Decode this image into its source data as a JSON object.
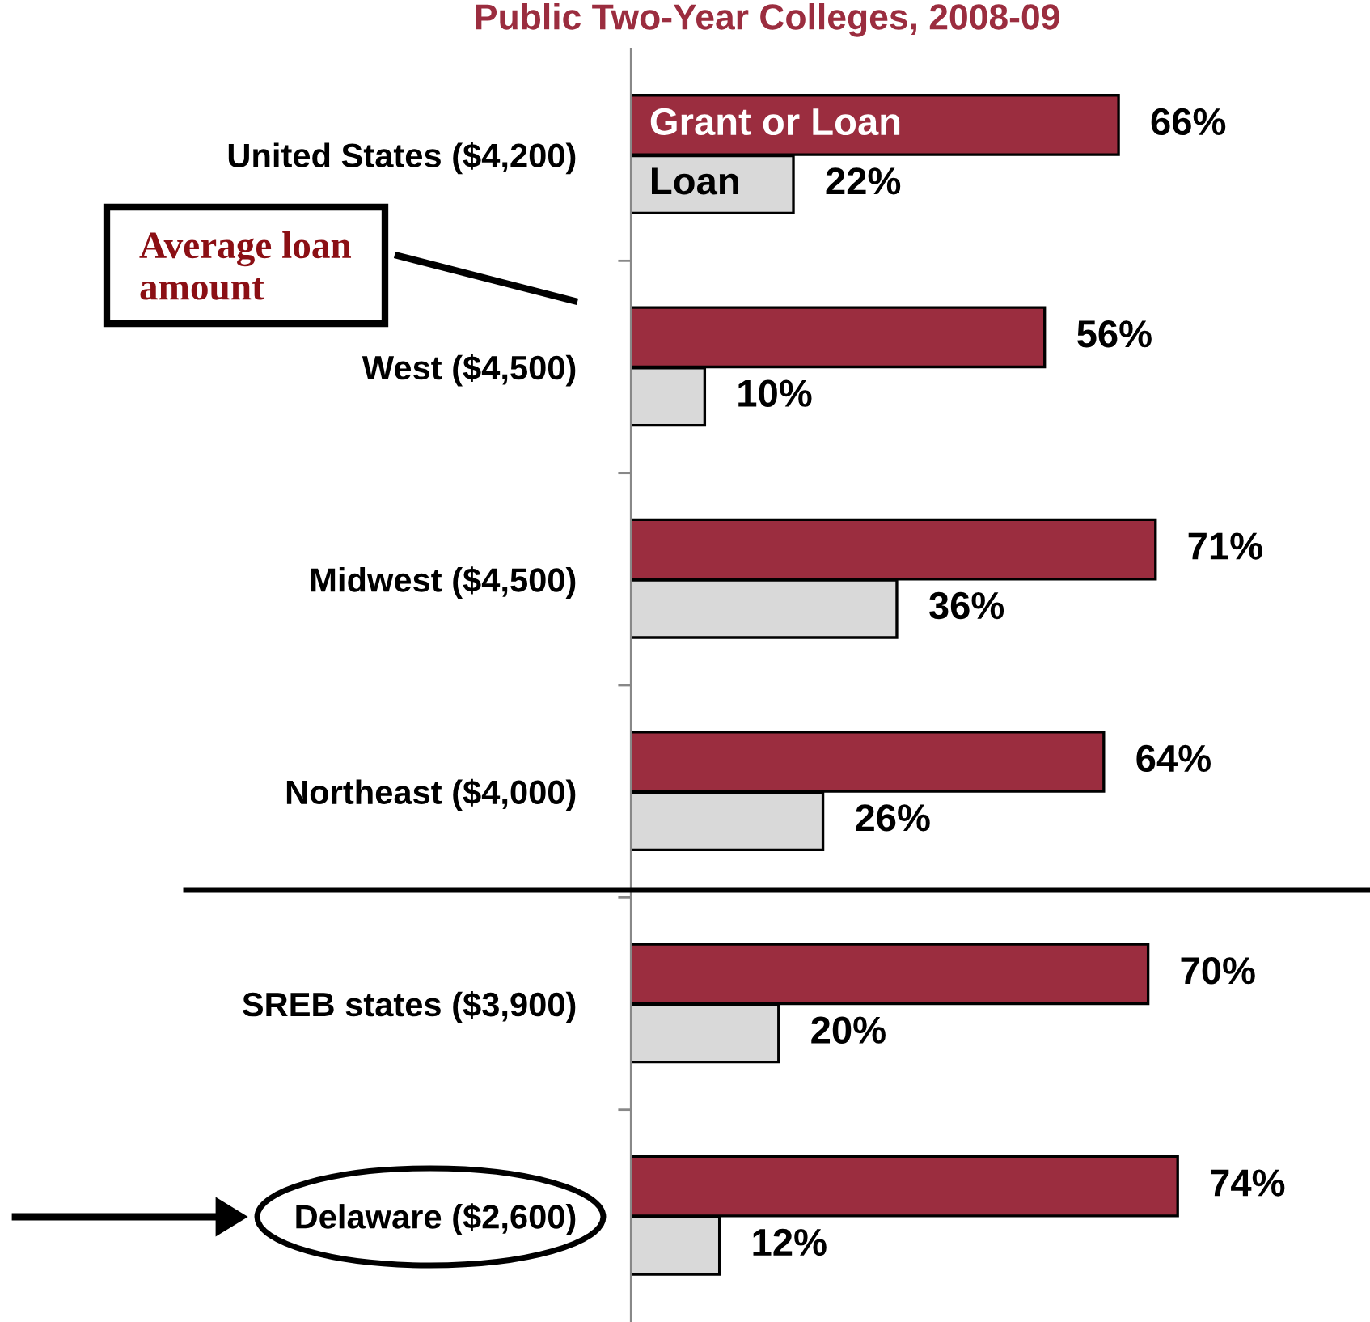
{
  "chart_data": {
    "type": "bar",
    "orientation": "horizontal",
    "title": "Public Two-Year Colleges, 2008-09",
    "categories": [
      "United States ($4,200)",
      "West ($4,500)",
      "Midwest ($4,500)",
      "Northeast ($4,000)",
      "SREB states ($3,900)",
      "Delaware ($2,600)"
    ],
    "series": [
      {
        "name": "Grant or Loan",
        "color": "#9b2d3f",
        "values": [
          66,
          56,
          71,
          64,
          70,
          74
        ],
        "value_labels": [
          "66%",
          "56%",
          "71%",
          "64%",
          "70%",
          "74%"
        ]
      },
      {
        "name": "Loan",
        "color": "#d9d9d9",
        "values": [
          22,
          10,
          36,
          26,
          20,
          12
        ],
        "value_labels": [
          "22%",
          "10%",
          "36%",
          "26%",
          "20%",
          "12%"
        ]
      }
    ],
    "tick_labels": "y",
    "legend": false,
    "grid": false,
    "annotations": [
      "Average loan amount"
    ]
  }
}
